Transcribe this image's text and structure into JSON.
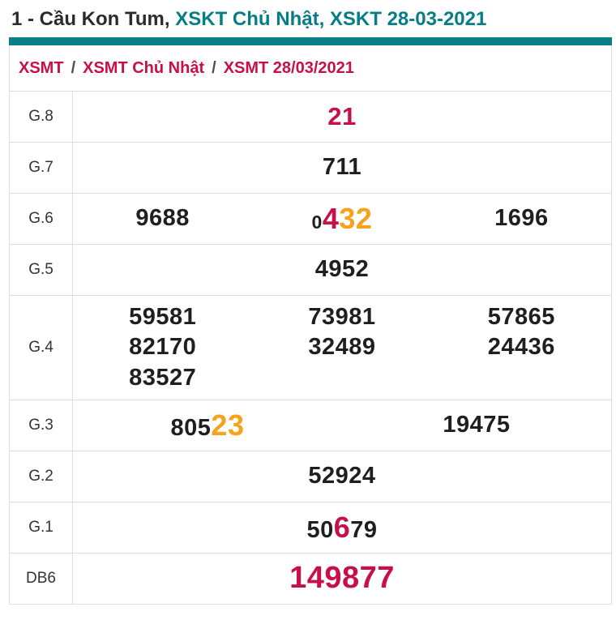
{
  "title": {
    "prefix": "1 - Cầu Kon Tum,",
    "link_weekday": "XSKT Chủ Nhật,",
    "link_date": "XSKT 28-03-2021"
  },
  "breadcrumb": {
    "items": [
      "XSMT",
      "XSMT Chủ Nhật",
      "XSMT 28/03/2021"
    ],
    "separator": "/"
  },
  "colors": {
    "teal_bar": "#0b7f87",
    "teal_link": "#067d86",
    "crimson": "#c81048",
    "orange": "#f6a21e",
    "digit_black": "#1f1f1f",
    "border": "#dddddd"
  },
  "results_table": {
    "rows": [
      {
        "label": "G.8",
        "columns": 1,
        "values": [
          [
            {
              "text": "21",
              "style": "red-medium"
            }
          ]
        ]
      },
      {
        "label": "G.7",
        "columns": 1,
        "values": [
          [
            {
              "text": "711",
              "style": "normal"
            }
          ]
        ]
      },
      {
        "label": "G.6",
        "columns": 3,
        "values": [
          [
            {
              "text": "9688",
              "style": "normal"
            }
          ],
          [
            {
              "text": "0",
              "style": "small"
            },
            {
              "text": "4",
              "style": "red"
            },
            {
              "text": "32",
              "style": "orange"
            }
          ],
          [
            {
              "text": "1696",
              "style": "normal"
            }
          ]
        ]
      },
      {
        "label": "G.5",
        "columns": 1,
        "values": [
          [
            {
              "text": "4952",
              "style": "normal"
            }
          ]
        ]
      },
      {
        "label": "G.4",
        "columns": 3,
        "values": [
          [
            {
              "text": "59581",
              "style": "normal"
            }
          ],
          [
            {
              "text": "73981",
              "style": "normal"
            }
          ],
          [
            {
              "text": "57865",
              "style": "normal"
            }
          ],
          [
            {
              "text": "82170",
              "style": "normal"
            }
          ],
          [
            {
              "text": "32489",
              "style": "normal"
            }
          ],
          [
            {
              "text": "24436",
              "style": "normal"
            }
          ],
          [
            {
              "text": "83527",
              "style": "normal"
            }
          ]
        ]
      },
      {
        "label": "G.3",
        "columns": 2,
        "values": [
          [
            {
              "text": "805",
              "style": "normal"
            },
            {
              "text": "23",
              "style": "orange"
            }
          ],
          [
            {
              "text": "19475",
              "style": "normal"
            }
          ]
        ]
      },
      {
        "label": "G.2",
        "columns": 1,
        "values": [
          [
            {
              "text": "52924",
              "style": "normal"
            }
          ]
        ]
      },
      {
        "label": "G.1",
        "columns": 1,
        "values": [
          [
            {
              "text": "50",
              "style": "normal"
            },
            {
              "text": "6",
              "style": "red"
            },
            {
              "text": "79",
              "style": "normal"
            }
          ]
        ]
      },
      {
        "label": "DB6",
        "columns": 1,
        "values": [
          [
            {
              "text": "149877",
              "style": "red-large"
            }
          ]
        ]
      }
    ]
  }
}
